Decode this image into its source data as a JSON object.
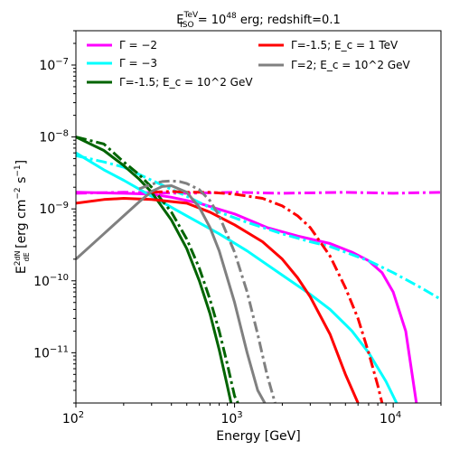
{
  "chart_data": {
    "type": "line",
    "title": "E^TeV_ISO = 10^48 erg; redshift=0.1",
    "title_parts": {
      "e": "E",
      "sup": "TeV",
      "sub": "ISO",
      "eq": " = 10",
      "exp": "48",
      "rest": " erg; redshift=0.1"
    },
    "xlabel": "Energy [GeV]",
    "ylabel": "E^2 dN/dE [erg cm^-2 s^-1]",
    "ylabel_parts": {
      "e": "E",
      "sup2": "2",
      "num": "dN",
      "den": "dE",
      "mid": " [erg cm",
      "exp1": "−2",
      "s": " s",
      "exp2": "−1",
      "close": "]"
    },
    "x_scale": "log",
    "y_scale": "log",
    "xlim": [
      100,
      20000
    ],
    "ylim": [
      2e-12,
      3e-07
    ],
    "x_ticks": [
      {
        "value": 100,
        "base": "10",
        "exp": "2"
      },
      {
        "value": 1000,
        "base": "10",
        "exp": "3"
      },
      {
        "value": 10000,
        "base": "10",
        "exp": "4"
      }
    ],
    "y_ticks": [
      {
        "value": 1e-11,
        "base": "10",
        "exp": "−11"
      },
      {
        "value": 1e-10,
        "base": "10",
        "exp": "−10"
      },
      {
        "value": 1e-09,
        "base": "10",
        "exp": "−9"
      },
      {
        "value": 1e-08,
        "base": "10",
        "exp": "−8"
      },
      {
        "value": 1e-07,
        "base": "10",
        "exp": "−7"
      }
    ],
    "grid": false,
    "legend_placement": "top",
    "legend": [
      {
        "label": "Γ = −2",
        "color": "#ff00ff"
      },
      {
        "label": "Γ = −3",
        "color": "#00ffff"
      },
      {
        "label": "Γ=-1.5; E_c = 10^2 GeV",
        "color": "#006400"
      },
      {
        "label": "Γ=-1.5; E_c = 1 TeV",
        "color": "#ff0000"
      },
      {
        "label": "Γ=2; E_c = 10^2 GeV",
        "color": "#808080"
      }
    ],
    "series": [
      {
        "color": "#ff00ff",
        "style": "solid",
        "x": [
          100,
          200,
          300,
          400,
          600,
          1000,
          1600,
          2500,
          4000,
          5500,
          7000,
          8500,
          10000,
          12000,
          14000
        ],
        "y": [
          1.7e-09,
          1.65e-09,
          1.6e-09,
          1.45e-09,
          1.2e-09,
          8.5e-10,
          5.5e-10,
          4.2e-10,
          3.3e-10,
          2.5e-10,
          1.9e-10,
          1.3e-10,
          7e-11,
          2e-11,
          2e-12
        ]
      },
      {
        "color": "#ff00ff",
        "style": "dashdot",
        "x": [
          100,
          200,
          500,
          1000,
          2000,
          5000,
          10000,
          20000
        ],
        "y": [
          1.65e-09,
          1.7e-09,
          1.65e-09,
          1.7e-09,
          1.65e-09,
          1.7e-09,
          1.65e-09,
          1.7e-09
        ]
      },
      {
        "color": "#00ffff",
        "style": "solid",
        "x": [
          100,
          150,
          200,
          300,
          500,
          800,
          1200,
          2000,
          3000,
          4000,
          5500,
          7000,
          9000,
          10500
        ],
        "y": [
          6e-09,
          3.5e-09,
          2.5e-09,
          1.5e-09,
          8e-10,
          4.5e-10,
          2.6e-10,
          1.2e-10,
          6.5e-11,
          4e-11,
          2e-11,
          1e-11,
          4e-12,
          2e-12
        ]
      },
      {
        "color": "#00ffff",
        "style": "dashdot",
        "x": [
          100,
          150,
          200,
          300,
          500,
          800,
          1200,
          2000,
          3000,
          4000,
          5000,
          7000,
          10000,
          15000,
          20000
        ],
        "y": [
          5.5e-09,
          4.5e-09,
          3.8e-09,
          2.5e-09,
          1.5e-09,
          9e-10,
          6.5e-10,
          4.5e-10,
          3.5e-10,
          3e-10,
          2.5e-10,
          1.9e-10,
          1.3e-10,
          8e-11,
          5.5e-11
        ]
      },
      {
        "color": "#006400",
        "style": "solid",
        "x": [
          100,
          150,
          200,
          250,
          300,
          400,
          500,
          600,
          700,
          800,
          900,
          950
        ],
        "y": [
          1e-08,
          6.5e-09,
          4e-09,
          2.6e-09,
          1.7e-09,
          7e-10,
          2.8e-10,
          1e-10,
          3.5e-11,
          1.1e-11,
          3.5e-12,
          2e-12
        ]
      },
      {
        "color": "#006400",
        "style": "dashdot",
        "x": [
          100,
          150,
          200,
          250,
          300,
          400,
          500,
          600,
          700,
          800,
          900,
          1000,
          1050
        ],
        "y": [
          1e-08,
          8e-09,
          4.5e-09,
          3e-09,
          2e-09,
          9e-10,
          3.8e-10,
          1.5e-10,
          5.5e-11,
          2e-11,
          7e-12,
          2.5e-12,
          2e-12
        ]
      },
      {
        "color": "#ff0000",
        "style": "solid",
        "x": [
          100,
          150,
          200,
          300,
          500,
          700,
          1000,
          1500,
          2000,
          2500,
          3000,
          4000,
          5000,
          6000
        ],
        "y": [
          1.2e-09,
          1.35e-09,
          1.4e-09,
          1.35e-09,
          1.2e-09,
          9e-10,
          6e-10,
          3.5e-10,
          2e-10,
          1.1e-10,
          6e-11,
          1.8e-11,
          5e-12,
          2e-12
        ]
      },
      {
        "color": "#ff0000",
        "style": "dashdot",
        "x": [
          300,
          400,
          500,
          700,
          1000,
          1500,
          2000,
          2500,
          3000,
          4000,
          5000,
          6000,
          7000,
          8000,
          8500
        ],
        "y": [
          1.7e-09,
          1.75e-09,
          1.7e-09,
          1.7e-09,
          1.6e-09,
          1.4e-09,
          1.1e-09,
          8e-10,
          5.5e-10,
          2.2e-10,
          8e-11,
          3e-11,
          1e-11,
          3.5e-12,
          2e-12
        ]
      },
      {
        "color": "#808080",
        "style": "solid",
        "x": [
          100,
          150,
          200,
          250,
          300,
          350,
          400,
          500,
          600,
          700,
          800,
          1000,
          1200,
          1400,
          1550
        ],
        "y": [
          2e-10,
          4.5e-10,
          8e-10,
          1.25e-09,
          1.75e-09,
          2.05e-09,
          2.1e-09,
          1.7e-09,
          1.05e-09,
          5.5e-10,
          2.6e-10,
          5e-11,
          1e-11,
          3e-12,
          2e-12
        ]
      },
      {
        "color": "#808080",
        "style": "dashdot",
        "x": [
          250,
          300,
          350,
          400,
          450,
          500,
          600,
          700,
          800,
          1000,
          1200,
          1400,
          1600,
          1800
        ],
        "y": [
          1.9e-09,
          2.2e-09,
          2.4e-09,
          2.45e-09,
          2.4e-09,
          2.25e-09,
          1.85e-09,
          1.3e-09,
          8e-10,
          2.5e-10,
          7e-11,
          1.8e-11,
          5e-12,
          2e-12
        ]
      }
    ]
  }
}
